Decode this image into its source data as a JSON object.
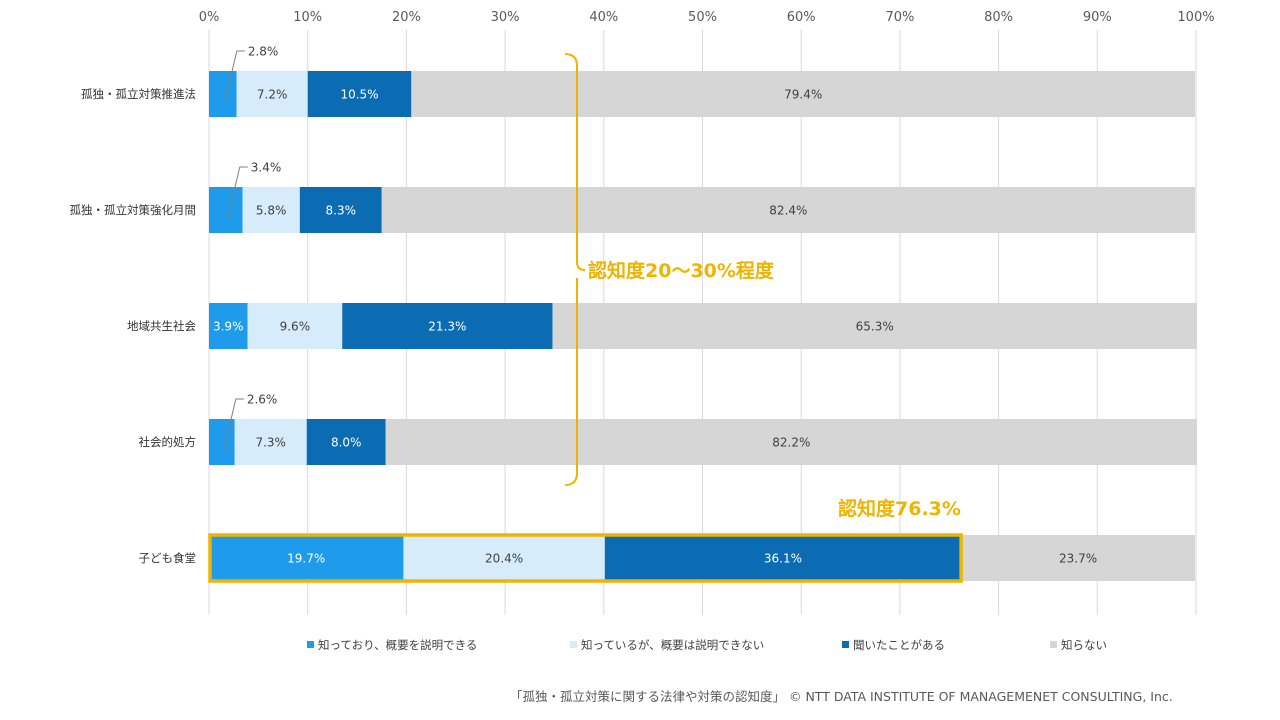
{
  "chart_data": {
    "type": "bar",
    "orientation": "horizontal",
    "stacked": true,
    "percent_axis": true,
    "xlim": [
      0,
      100
    ],
    "x_ticks": [
      "0%",
      "10%",
      "20%",
      "30%",
      "40%",
      "50%",
      "60%",
      "70%",
      "80%",
      "90%",
      "100%"
    ],
    "categories": [
      "孤独・孤立対策推進法",
      "孤独・孤立対策強化月間",
      "地域共生社会",
      "社会的処方",
      "子ども食堂"
    ],
    "series": [
      {
        "name": "知っており、概要を説明できる",
        "color": "#1E9BEA",
        "values": [
          2.8,
          3.4,
          3.9,
          2.6,
          19.7
        ]
      },
      {
        "name": "知っているが、概要は説明できない",
        "color": "#D6ECFA",
        "values": [
          7.2,
          5.8,
          9.6,
          7.3,
          20.4
        ]
      },
      {
        "name": "聞いたことがある",
        "color": "#0B6CB3",
        "values": [
          10.5,
          8.3,
          21.3,
          8.0,
          36.1
        ]
      },
      {
        "name": "知らない",
        "color": "#D6D6D6",
        "values": [
          79.4,
          82.4,
          65.3,
          82.2,
          23.7
        ]
      }
    ],
    "legend_position": "bottom",
    "annotations": [
      {
        "text": "認知度20～30%程度",
        "applies_to": [
          0,
          1,
          2,
          3
        ]
      },
      {
        "text": "認知度76.3%",
        "applies_to": [
          4
        ]
      }
    ],
    "highlight_color": "#F0B400"
  },
  "source": "「孤独・孤立対策に関する法律や対策の認知度」 © NTT DATA INSTITUTE OF MANAGEMENET CONSULTING, Inc."
}
